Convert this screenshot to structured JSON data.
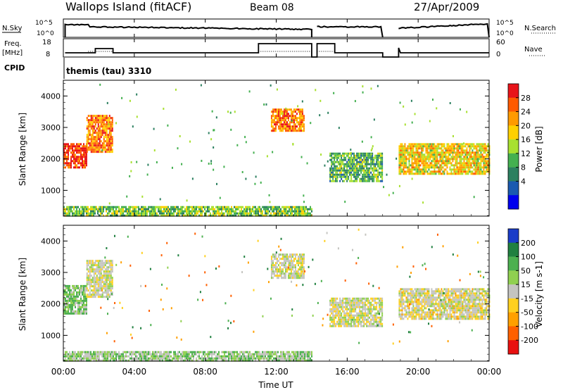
{
  "header": {
    "station": "Wallops Island (fitACF)",
    "beam": "Beam 08",
    "date": "27/Apr/2009"
  },
  "top_panels": {
    "nsky_label": "N.Sky",
    "nsearch_label": "N.Search",
    "freq_label_1": "Freq.",
    "freq_label_2": "[MHz]",
    "nave_label": "Nave",
    "cpid_label": "CPID",
    "cpid_text": "themis (tau) 3310",
    "noise_ticks": [
      "10^5",
      "10^0"
    ],
    "freq_ticks": [
      "18",
      "8"
    ],
    "nave_ticks": [
      "60",
      "0"
    ]
  },
  "chart_data": [
    {
      "type": "heatmap",
      "name": "power",
      "ylabel": "Slant Range [km]",
      "ylim": [
        180,
        4500
      ],
      "yticks": [
        1000,
        2000,
        3000,
        4000
      ],
      "xlim": [
        0,
        24
      ],
      "colorbar": {
        "label": "Power [dB]",
        "ticks": [
          "28",
          "24",
          "20",
          "16",
          "12",
          "8",
          "4"
        ],
        "colors": [
          "#e8141a",
          "#ff5a00",
          "#ff9a00",
          "#ffd000",
          "#a8e030",
          "#44b050",
          "#2c8060",
          "#1a5ab0",
          "#0000ee"
        ]
      },
      "features": [
        {
          "t": [
            0.0,
            1.3
          ],
          "range": [
            1700,
            2500
          ],
          "value_db": 26
        },
        {
          "t": [
            1.3,
            2.8
          ],
          "range": [
            2200,
            3400
          ],
          "value_db": 22
        },
        {
          "t": [
            11.7,
            13.6
          ],
          "range": [
            2900,
            3600
          ],
          "value_db": 22
        },
        {
          "t": [
            15.0,
            18.0
          ],
          "range": [
            1300,
            2200
          ],
          "value_db": 8
        },
        {
          "t": [
            18.9,
            24.0
          ],
          "range": [
            1500,
            2500
          ],
          "value_db": 16
        },
        {
          "t": [
            0.0,
            14.0
          ],
          "range": [
            180,
            500
          ],
          "value_db": 10
        }
      ]
    },
    {
      "type": "heatmap",
      "name": "velocity",
      "ylabel": "Slant Range [km]",
      "ylim": [
        180,
        4500
      ],
      "yticks": [
        1000,
        2000,
        3000,
        4000
      ],
      "xlim": [
        0,
        24
      ],
      "colorbar": {
        "label": "Velocity [m s-1]",
        "ticks": [
          "200",
          "100",
          "50",
          "15",
          "-15",
          "-50",
          "-100",
          "-200"
        ],
        "colors": [
          "#1a3cc8",
          "#208040",
          "#4cb050",
          "#90d050",
          "#c4c4c0",
          "#ffd020",
          "#ffa000",
          "#ff6000",
          "#e81010"
        ]
      },
      "features": [
        {
          "t": [
            0.0,
            1.3
          ],
          "range": [
            1700,
            2600
          ],
          "value": 30
        },
        {
          "t": [
            1.3,
            2.8
          ],
          "range": [
            2200,
            3400
          ],
          "value": 0
        },
        {
          "t": [
            11.7,
            13.6
          ],
          "range": [
            2800,
            3600
          ],
          "value": 0
        },
        {
          "t": [
            15.0,
            18.0
          ],
          "range": [
            1300,
            2200
          ],
          "value": 0
        },
        {
          "t": [
            18.9,
            24.0
          ],
          "range": [
            1500,
            2500
          ],
          "value": -5
        },
        {
          "t": [
            0.0,
            14.0
          ],
          "range": [
            180,
            500
          ],
          "value": 20
        }
      ]
    }
  ],
  "time_axis": {
    "xlabel": "Time UT",
    "ticks": [
      "00:00",
      "04:00",
      "08:00",
      "12:00",
      "16:00",
      "20:00",
      "00:00"
    ]
  }
}
